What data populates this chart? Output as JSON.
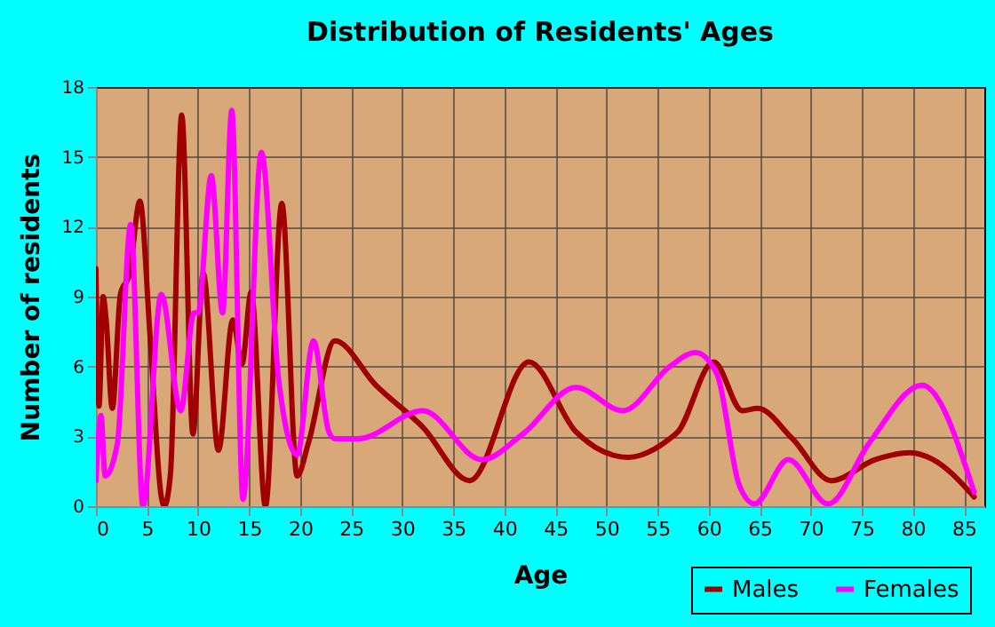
{
  "chart_data": {
    "type": "line",
    "title": "Distribution of Residents' Ages",
    "xlabel": "Age",
    "ylabel": "Number of residents",
    "xlim": [
      0,
      87
    ],
    "xticks": [
      0,
      5,
      10,
      15,
      20,
      25,
      30,
      35,
      40,
      45,
      50,
      55,
      60,
      65,
      70,
      75,
      80,
      85
    ],
    "ylim": [
      0,
      18
    ],
    "yticks": [
      0,
      3,
      6,
      9,
      12,
      15,
      18
    ],
    "grid": true,
    "legend": "bottom right",
    "marker": "none",
    "line_style": "solid",
    "series": [
      {
        "name": "Males",
        "color": "#a00000",
        "x": [
          0,
          0.3,
          0.7,
          1,
          1.6,
          2.4,
          3.3,
          4.3,
          5.3,
          6.4,
          6.7,
          7.3,
          8.4,
          9.5,
          10.5,
          12,
          13.4,
          14.3,
          15.2,
          16.6,
          18.2,
          19.7,
          20.8,
          23.4,
          27.4,
          32,
          36.6,
          42.4,
          47,
          52.1,
          56.2,
          57,
          60.5,
          63.3,
          64.8,
          68.2,
          72,
          76.3,
          79.7,
          82,
          86
        ],
        "values": [
          10.2,
          4.3,
          9,
          8,
          4.2,
          9.1,
          10,
          13.1,
          7.3,
          0.4,
          0,
          1.4,
          16.8,
          3.1,
          10,
          2.4,
          8,
          6.1,
          9.2,
          0,
          13,
          1.3,
          2.7,
          7.1,
          5.2,
          3.4,
          1.1,
          6.2,
          3.2,
          2.1,
          2.9,
          3.2,
          6.2,
          4.1,
          4.2,
          2.9,
          1.1,
          2,
          2.3,
          2,
          0.4
        ]
      },
      {
        "name": "Females",
        "color": "#ff00ff",
        "x": [
          0,
          0.5,
          0.9,
          2.1,
          3.4,
          4.6,
          6.4,
          8.3,
          9.6,
          10,
          11.3,
          12.4,
          13.3,
          14.4,
          16.2,
          17.9,
          19.7,
          21.3,
          22.8,
          23.4,
          25.7,
          32,
          37.8,
          41.8,
          47,
          51.6,
          56.2,
          58.7,
          60.8,
          63,
          64.5,
          67.8,
          71.7,
          75.7,
          80.9,
          86
        ],
        "values": [
          1.1,
          3.9,
          1.3,
          2.7,
          12.1,
          0,
          9.1,
          4.1,
          8.3,
          8.3,
          14.2,
          8.3,
          17,
          0.3,
          15.2,
          5.4,
          2.2,
          7.1,
          3.2,
          2.9,
          2.9,
          4.1,
          2,
          3.1,
          5.1,
          4.1,
          6,
          6.6,
          5.7,
          0.9,
          0.1,
          2,
          0.1,
          2.7,
          5.2,
          0.6
        ]
      }
    ]
  }
}
